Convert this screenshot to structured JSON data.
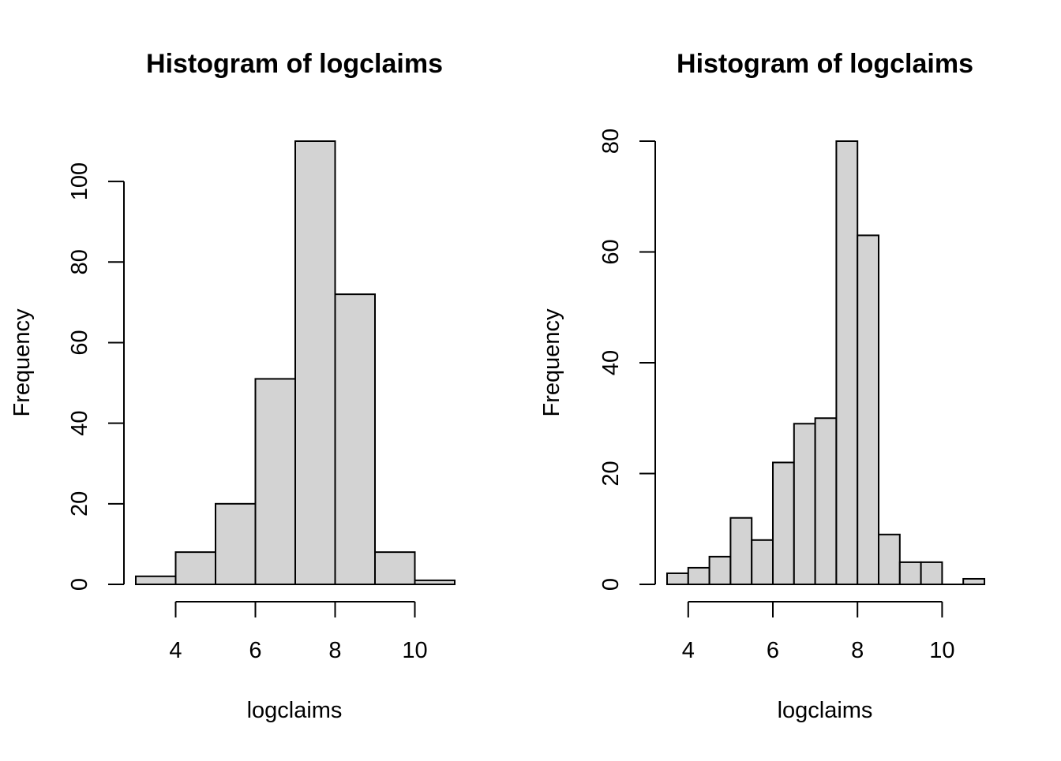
{
  "chart_data": [
    {
      "type": "bar",
      "title": "Histogram of logclaims",
      "xlabel": "logclaims",
      "ylabel": "Frequency",
      "bin_edges": [
        3,
        4,
        5,
        6,
        7,
        8,
        9,
        10,
        11
      ],
      "values": [
        2,
        8,
        20,
        51,
        110,
        72,
        8,
        1
      ],
      "xticks": [
        4,
        6,
        8,
        10
      ],
      "yticks": [
        0,
        20,
        40,
        60,
        80,
        100
      ],
      "xlim": [
        3,
        11
      ],
      "ylim": [
        0,
        110
      ],
      "bar_color": "#d3d3d3",
      "grid": false
    },
    {
      "type": "bar",
      "title": "Histogram of logclaims",
      "xlabel": "logclaims",
      "ylabel": "Frequency",
      "bin_edges": [
        3.5,
        4,
        4.5,
        5,
        5.5,
        6,
        6.5,
        7,
        7.5,
        8,
        8.5,
        9,
        9.5,
        10,
        10.5,
        11
      ],
      "values": [
        2,
        3,
        5,
        12,
        8,
        22,
        29,
        30,
        80,
        63,
        9,
        4,
        4,
        0,
        1
      ],
      "xticks": [
        4,
        6,
        8,
        10
      ],
      "yticks": [
        0,
        20,
        40,
        60,
        80
      ],
      "xlim": [
        3.5,
        11
      ],
      "ylim": [
        0,
        80
      ],
      "bar_color": "#d3d3d3",
      "grid": false
    }
  ]
}
